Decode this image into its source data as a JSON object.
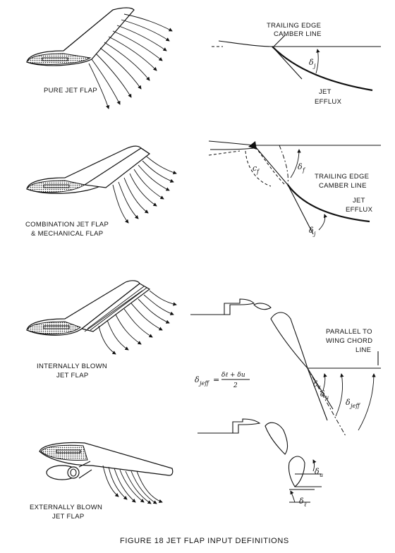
{
  "figure": {
    "caption": "FIGURE 18 JET FLAP INPUT DEFINITIONS"
  },
  "panel_pure": {
    "name": "PURE JET FLAP",
    "label_trailing_edge_line1": "TRAILING EDGE",
    "label_trailing_edge_line2": "CAMBER LINE",
    "label_jet_line1": "JET",
    "label_jet_line2": "EFFLUX",
    "angle_symbol": "δ",
    "angle_sub": "j"
  },
  "panel_combination": {
    "name_line1": "COMBINATION JET FLAP",
    "name_line2": "& MECHANICAL FLAP",
    "label_trailing_edge_line1": "TRAILING EDGE",
    "label_trailing_edge_line2": "CAMBER LINE",
    "label_jet_line1": "JET",
    "label_jet_line2": "EFFLUX",
    "chord_symbol": "c",
    "chord_sub": "f",
    "flap_symbol": "δ",
    "flap_sub": "f",
    "jet_symbol": "δ",
    "jet_sub": "j"
  },
  "panel_internal": {
    "name_line1": "INTERNALLY BLOWN",
    "name_line2": "JET FLAP",
    "parallel_line1": "PARALLEL TO",
    "parallel_line2": "WING CHORD",
    "parallel_line3": "LINE",
    "formula_lhs": "δ",
    "formula_lhs_sub": "jeff",
    "formula_eq": "=",
    "formula_num": "δℓ + δu",
    "formula_den": "2",
    "sym_l": "δ",
    "sym_l_sub": "ℓ",
    "sym_u": "δ",
    "sym_u_sub": "u",
    "sym_eff": "δ",
    "sym_eff_sub": "jeff"
  },
  "panel_external": {
    "name_line1": "EXTERNALLY BLOWN",
    "name_line2": "JET FLAP",
    "sym_u": "δ",
    "sym_u_sub": "u",
    "sym_l": "δ",
    "sym_l_sub": "ℓ"
  }
}
